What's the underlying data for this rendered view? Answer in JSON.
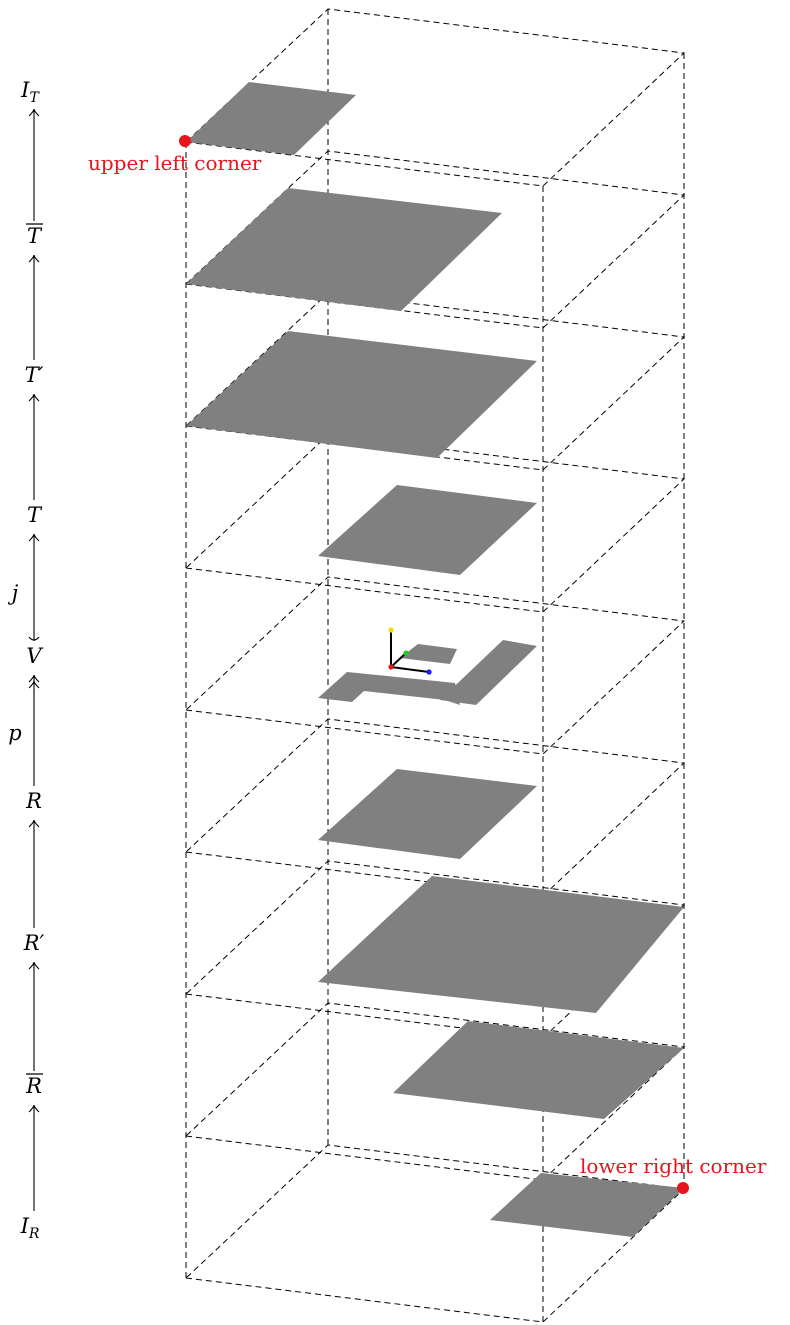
{
  "left_chain": {
    "labels": [
      {
        "id": "IT",
        "base": "I",
        "sub": "T"
      },
      {
        "id": "Tbar",
        "base": "T",
        "overline": true
      },
      {
        "id": "Tprime",
        "base": "T′"
      },
      {
        "id": "T",
        "base": "T"
      },
      {
        "id": "V",
        "base": "V"
      },
      {
        "id": "R",
        "base": "R"
      },
      {
        "id": "Rprime",
        "base": "R′"
      },
      {
        "id": "Rbar",
        "base": "R",
        "overline": true
      },
      {
        "id": "IR",
        "base": "I",
        "sub": "R"
      }
    ],
    "arrow_labels": {
      "j": "j",
      "p": "p"
    }
  },
  "annotations": {
    "upper_left": "upper left corner",
    "lower_right": "lower right corner"
  },
  "colors": {
    "shape_fill": "#808080",
    "marker": "#e8141c",
    "annotation_text": "#e8141c",
    "axis_x": "#1a1aff",
    "axis_y": "#ffd400",
    "axis_z": "#22cc22",
    "origin": "#e8141c"
  }
}
